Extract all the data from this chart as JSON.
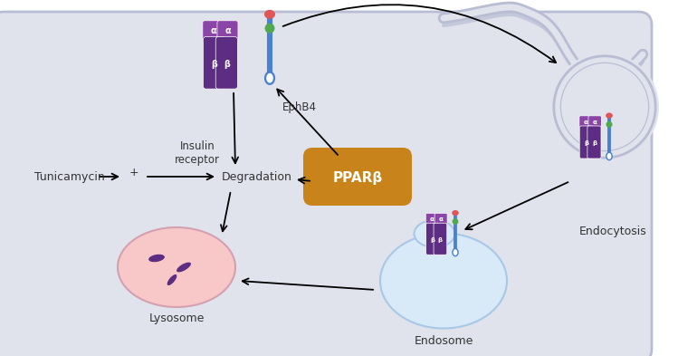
{
  "fig_bg": "#ffffff",
  "cell_bg": "#e0e3ec",
  "cell_outline": "#b8bdd4",
  "purple": "#7b3fa0",
  "purple_dark": "#5c2d82",
  "purple_alpha": "#8b45a8",
  "gold": "#c8831a",
  "red": "#e05555",
  "green": "#50a850",
  "blue": "#4a80d0",
  "blue_light": "#b0cce8",
  "pink_lyso": "#f8c8c8",
  "pink_lyso_edge": "#d4a0b0",
  "endosome_color": "#d8eaf8",
  "endosome_edge": "#a8c8e8",
  "white": "#ffffff",
  "text_color": "#333333",
  "labels": {
    "insulin_receptor": "Insulin\nreceptor",
    "ephb4": "EphB4",
    "tunicamycin": "Tunicamycin",
    "degradation": "Degradation",
    "pparb": "PPARβ",
    "lysosome": "Lysosome",
    "endosome": "Endosome",
    "endocytosis": "Endocytosis",
    "plus": "+"
  }
}
